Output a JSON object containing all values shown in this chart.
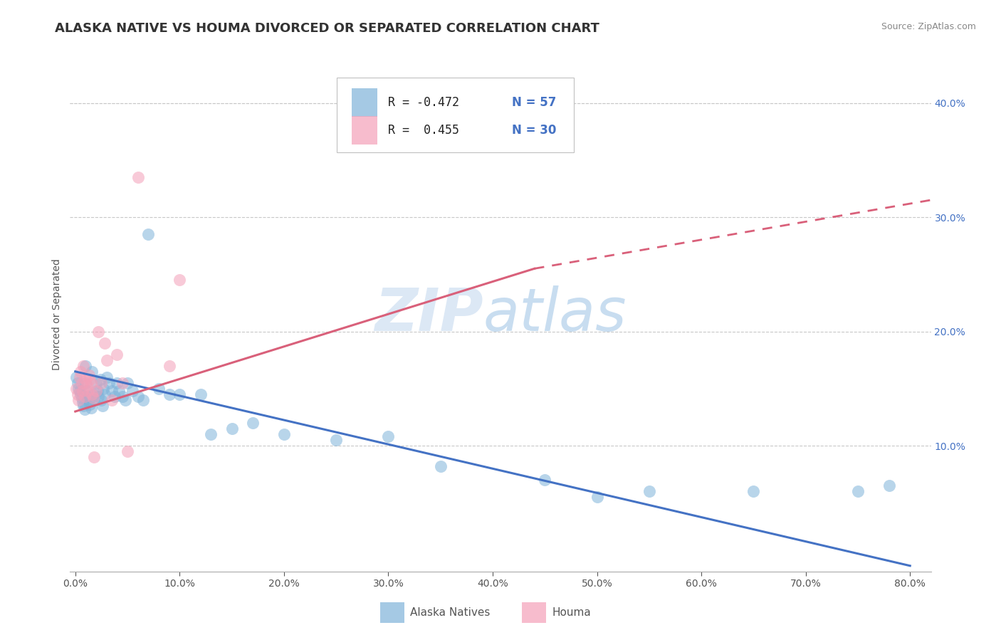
{
  "title": "ALASKA NATIVE VS HOUMA DIVORCED OR SEPARATED CORRELATION CHART",
  "source": "Source: ZipAtlas.com",
  "ylabel": "Divorced or Separated",
  "xlim": [
    -0.005,
    0.82
  ],
  "ylim": [
    -0.01,
    0.44
  ],
  "xticks": [
    0.0,
    0.1,
    0.2,
    0.3,
    0.4,
    0.5,
    0.6,
    0.7,
    0.8
  ],
  "yticks_right": [
    0.1,
    0.2,
    0.3,
    0.4
  ],
  "ytick_labels_right": [
    "10.0%",
    "20.0%",
    "30.0%",
    "40.0%"
  ],
  "xtick_labels": [
    "0.0%",
    "10.0%",
    "20.0%",
    "30.0%",
    "40.0%",
    "50.0%",
    "60.0%",
    "70.0%",
    "80.0%"
  ],
  "blue_dot_color": "#7fb3d9",
  "pink_dot_color": "#f4a0b8",
  "trend_blue_color": "#4472c4",
  "trend_pink_color": "#d9607a",
  "grid_color": "#c8c8c8",
  "watermark_color": "#dce8f5",
  "legend_label_blue": "Alaska Natives",
  "legend_label_pink": "Houma",
  "legend_R_blue": "R = -0.472",
  "legend_N_blue": "N = 57",
  "legend_R_pink": "R =  0.455",
  "legend_N_pink": "N = 30",
  "blue_scatter_x": [
    0.001,
    0.002,
    0.003,
    0.004,
    0.005,
    0.006,
    0.007,
    0.008,
    0.009,
    0.01,
    0.01,
    0.011,
    0.012,
    0.013,
    0.014,
    0.015,
    0.016,
    0.017,
    0.018,
    0.02,
    0.021,
    0.022,
    0.024,
    0.025,
    0.026,
    0.027,
    0.028,
    0.03,
    0.032,
    0.035,
    0.038,
    0.04,
    0.042,
    0.045,
    0.048,
    0.05,
    0.055,
    0.06,
    0.065,
    0.07,
    0.08,
    0.09,
    0.1,
    0.12,
    0.13,
    0.15,
    0.17,
    0.2,
    0.25,
    0.3,
    0.35,
    0.45,
    0.5,
    0.55,
    0.65,
    0.75,
    0.78
  ],
  "blue_scatter_y": [
    0.16,
    0.155,
    0.15,
    0.148,
    0.145,
    0.142,
    0.138,
    0.135,
    0.132,
    0.17,
    0.155,
    0.148,
    0.143,
    0.14,
    0.136,
    0.133,
    0.165,
    0.145,
    0.14,
    0.155,
    0.148,
    0.143,
    0.158,
    0.14,
    0.135,
    0.15,
    0.145,
    0.16,
    0.155,
    0.148,
    0.143,
    0.155,
    0.148,
    0.143,
    0.14,
    0.155,
    0.148,
    0.143,
    0.14,
    0.285,
    0.15,
    0.145,
    0.145,
    0.145,
    0.11,
    0.115,
    0.12,
    0.11,
    0.105,
    0.108,
    0.082,
    0.07,
    0.055,
    0.06,
    0.06,
    0.06,
    0.065
  ],
  "pink_scatter_x": [
    0.001,
    0.002,
    0.003,
    0.004,
    0.005,
    0.006,
    0.007,
    0.008,
    0.009,
    0.01,
    0.011,
    0.012,
    0.013,
    0.014,
    0.015,
    0.016,
    0.017,
    0.018,
    0.02,
    0.022,
    0.025,
    0.028,
    0.03,
    0.035,
    0.04,
    0.045,
    0.05,
    0.06,
    0.09,
    0.1
  ],
  "pink_scatter_y": [
    0.15,
    0.145,
    0.14,
    0.16,
    0.165,
    0.155,
    0.148,
    0.17,
    0.143,
    0.158,
    0.153,
    0.148,
    0.162,
    0.158,
    0.155,
    0.145,
    0.142,
    0.09,
    0.148,
    0.2,
    0.155,
    0.19,
    0.175,
    0.14,
    0.18,
    0.155,
    0.095,
    0.335,
    0.17,
    0.245
  ],
  "blue_trend_x0": 0.0,
  "blue_trend_y0": 0.165,
  "blue_trend_x1": 0.8,
  "blue_trend_y1": -0.005,
  "pink_trend_solid_x0": 0.0,
  "pink_trend_solid_y0": 0.13,
  "pink_trend_solid_x1": 0.44,
  "pink_trend_solid_y1": 0.255,
  "pink_trend_dash_x0": 0.44,
  "pink_trend_dash_y0": 0.255,
  "pink_trend_dash_x1": 0.82,
  "pink_trend_dash_y1": 0.315,
  "title_fontsize": 13,
  "axis_label_fontsize": 10,
  "tick_fontsize": 10,
  "legend_fontsize": 12,
  "source_fontsize": 9
}
